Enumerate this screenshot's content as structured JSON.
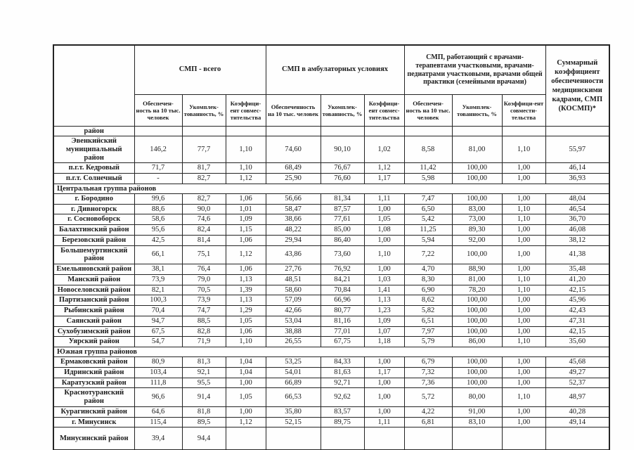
{
  "table": {
    "corner_label": "район",
    "groups": [
      {
        "label": "СМП - всего",
        "sub": [
          "Обеспечен-ность на 10 тыс. человек",
          "Укомплек-тованность, %",
          "Коэффици-ент совмес-тительства"
        ]
      },
      {
        "label": "СМП в амбулаторных условиях",
        "sub": [
          "Обеспеченность на 10 тыс. человек",
          "Укомплек-тованность, %",
          "Коэффици-ент совмес-тительства"
        ]
      },
      {
        "label": "СМП, работающий с врачами-терапевтами участковыми, врачами-педиатрами участковыми, врачами общей практики (семейными врачами)",
        "sub": [
          "Обеспечен-ность на 10 тыс. человек",
          "Укомплек-тованность, %",
          "Коэффици-ент совмести-тельства"
        ]
      }
    ],
    "summary_header": "Суммарный коэффициент обеспеченности медицинскими кадрами, СМП (КОСМП)*",
    "rows": [
      {
        "type": "data",
        "label": "Эвенкийский муниципальный район",
        "values": [
          "146,2",
          "77,7",
          "1,10",
          "74,60",
          "90,10",
          "1,02",
          "8,58",
          "81,00",
          "1,10",
          "55,97"
        ]
      },
      {
        "type": "data",
        "label": "п.г.т. Кедровый",
        "values": [
          "71,7",
          "81,7",
          "1,10",
          "68,49",
          "76,67",
          "1,12",
          "11,42",
          "100,00",
          "1,00",
          "46,14"
        ]
      },
      {
        "type": "data",
        "label": "п.г.т. Солнечный",
        "values": [
          "-",
          "82,7",
          "1,12",
          "25,90",
          "76,60",
          "1,17",
          "5,98",
          "100,00",
          "1,00",
          "36,93"
        ]
      },
      {
        "type": "section",
        "label": "Центральная группа районов"
      },
      {
        "type": "data",
        "label": "г. Бородино",
        "values": [
          "99,6",
          "82,7",
          "1,06",
          "56,66",
          "81,34",
          "1,11",
          "7,47",
          "100,00",
          "1,00",
          "48,04"
        ]
      },
      {
        "type": "data",
        "label": "г. Дивногорск",
        "values": [
          "88,6",
          "90,0",
          "1,01",
          "58,47",
          "87,57",
          "1,00",
          "6,50",
          "83,00",
          "1,10",
          "46,54"
        ]
      },
      {
        "type": "data",
        "label": "г. Сосновоборск",
        "values": [
          "58,6",
          "74,6",
          "1,09",
          "38,66",
          "77,61",
          "1,05",
          "5,42",
          "73,00",
          "1,10",
          "36,70"
        ]
      },
      {
        "type": "data",
        "label": "Балахтинский район",
        "values": [
          "95,6",
          "82,4",
          "1,15",
          "48,22",
          "85,00",
          "1,08",
          "11,25",
          "89,30",
          "1,00",
          "46,08"
        ]
      },
      {
        "type": "data",
        "label": "Березовский район",
        "values": [
          "42,5",
          "81,4",
          "1,06",
          "29,94",
          "86,40",
          "1,00",
          "5,94",
          "92,00",
          "1,00",
          "38,12"
        ]
      },
      {
        "type": "data",
        "label": "Большемуртинский район",
        "values": [
          "66,1",
          "75,1",
          "1,12",
          "43,86",
          "73,60",
          "1,10",
          "7,22",
          "100,00",
          "1,00",
          "41,38"
        ]
      },
      {
        "type": "data",
        "label": "Емельяновский район",
        "values": [
          "38,1",
          "76,4",
          "1,06",
          "27,76",
          "76,92",
          "1,00",
          "4,70",
          "88,90",
          "1,00",
          "35,48"
        ]
      },
      {
        "type": "data",
        "label": "Манский район",
        "values": [
          "73,9",
          "79,0",
          "1,13",
          "48,51",
          "84,21",
          "1,03",
          "8,30",
          "81,00",
          "1,10",
          "41,20"
        ]
      },
      {
        "type": "data",
        "label": "Новоселовский район",
        "values": [
          "82,1",
          "70,5",
          "1,39",
          "58,60",
          "70,84",
          "1,41",
          "6,90",
          "78,20",
          "1,10",
          "42,15"
        ]
      },
      {
        "type": "data",
        "label": "Партизанский район",
        "values": [
          "100,3",
          "73,9",
          "1,13",
          "57,09",
          "66,96",
          "1,13",
          "8,62",
          "100,00",
          "1,00",
          "45,96"
        ]
      },
      {
        "type": "data",
        "label": "Рыбинский район",
        "values": [
          "70,4",
          "74,7",
          "1,29",
          "42,66",
          "80,77",
          "1,23",
          "5,82",
          "100,00",
          "1,00",
          "42,43"
        ]
      },
      {
        "type": "data",
        "label": "Саянский район",
        "values": [
          "94,7",
          "88,5",
          "1,05",
          "53,04",
          "81,16",
          "1,09",
          "6,51",
          "100,00",
          "1,00",
          "47,31"
        ]
      },
      {
        "type": "data",
        "label": "Сухобузимский район",
        "values": [
          "67,5",
          "82,8",
          "1,06",
          "38,88",
          "77,01",
          "1,07",
          "7,97",
          "100,00",
          "1,00",
          "42,15"
        ]
      },
      {
        "type": "data",
        "label": "Уярский район",
        "values": [
          "54,7",
          "71,9",
          "1,10",
          "26,55",
          "67,75",
          "1,18",
          "5,79",
          "86,00",
          "1,10",
          "35,60"
        ]
      },
      {
        "type": "section",
        "label": "Южная группа районов"
      },
      {
        "type": "data",
        "label": "Ермаковский район",
        "values": [
          "80,9",
          "81,3",
          "1,04",
          "53,25",
          "84,33",
          "1,00",
          "6,79",
          "100,00",
          "1,00",
          "45,68"
        ]
      },
      {
        "type": "data",
        "label": "Идринский район",
        "values": [
          "103,4",
          "92,1",
          "1,04",
          "54,01",
          "81,63",
          "1,17",
          "7,32",
          "100,00",
          "1,00",
          "49,27"
        ]
      },
      {
        "type": "data",
        "label": "Каратузский район",
        "values": [
          "111,8",
          "95,5",
          "1,00",
          "66,89",
          "92,71",
          "1,00",
          "7,36",
          "100,00",
          "1,00",
          "52,37"
        ]
      },
      {
        "type": "data",
        "label": "Краснотуранский район",
        "values": [
          "96,6",
          "91,4",
          "1,05",
          "66,53",
          "92,62",
          "1,00",
          "5,72",
          "80,00",
          "1,10",
          "48,97"
        ]
      },
      {
        "type": "data",
        "label": "Курагинский район",
        "values": [
          "64,6",
          "81,8",
          "1,00",
          "35,80",
          "83,57",
          "1,00",
          "4,22",
          "91,00",
          "1,00",
          "40,28"
        ]
      },
      {
        "type": "data",
        "label": "г. Минусинск",
        "values": [
          "115,4",
          "89,5",
          "1,12",
          "52,15",
          "89,75",
          "1,11",
          "6,81",
          "83,10",
          "1,00",
          "49,14"
        ]
      },
      {
        "type": "data",
        "label": "Минусинский район",
        "values": [
          "39,4",
          "94,4",
          "",
          "",
          "",
          "",
          "",
          "",
          "",
          ""
        ]
      }
    ]
  }
}
